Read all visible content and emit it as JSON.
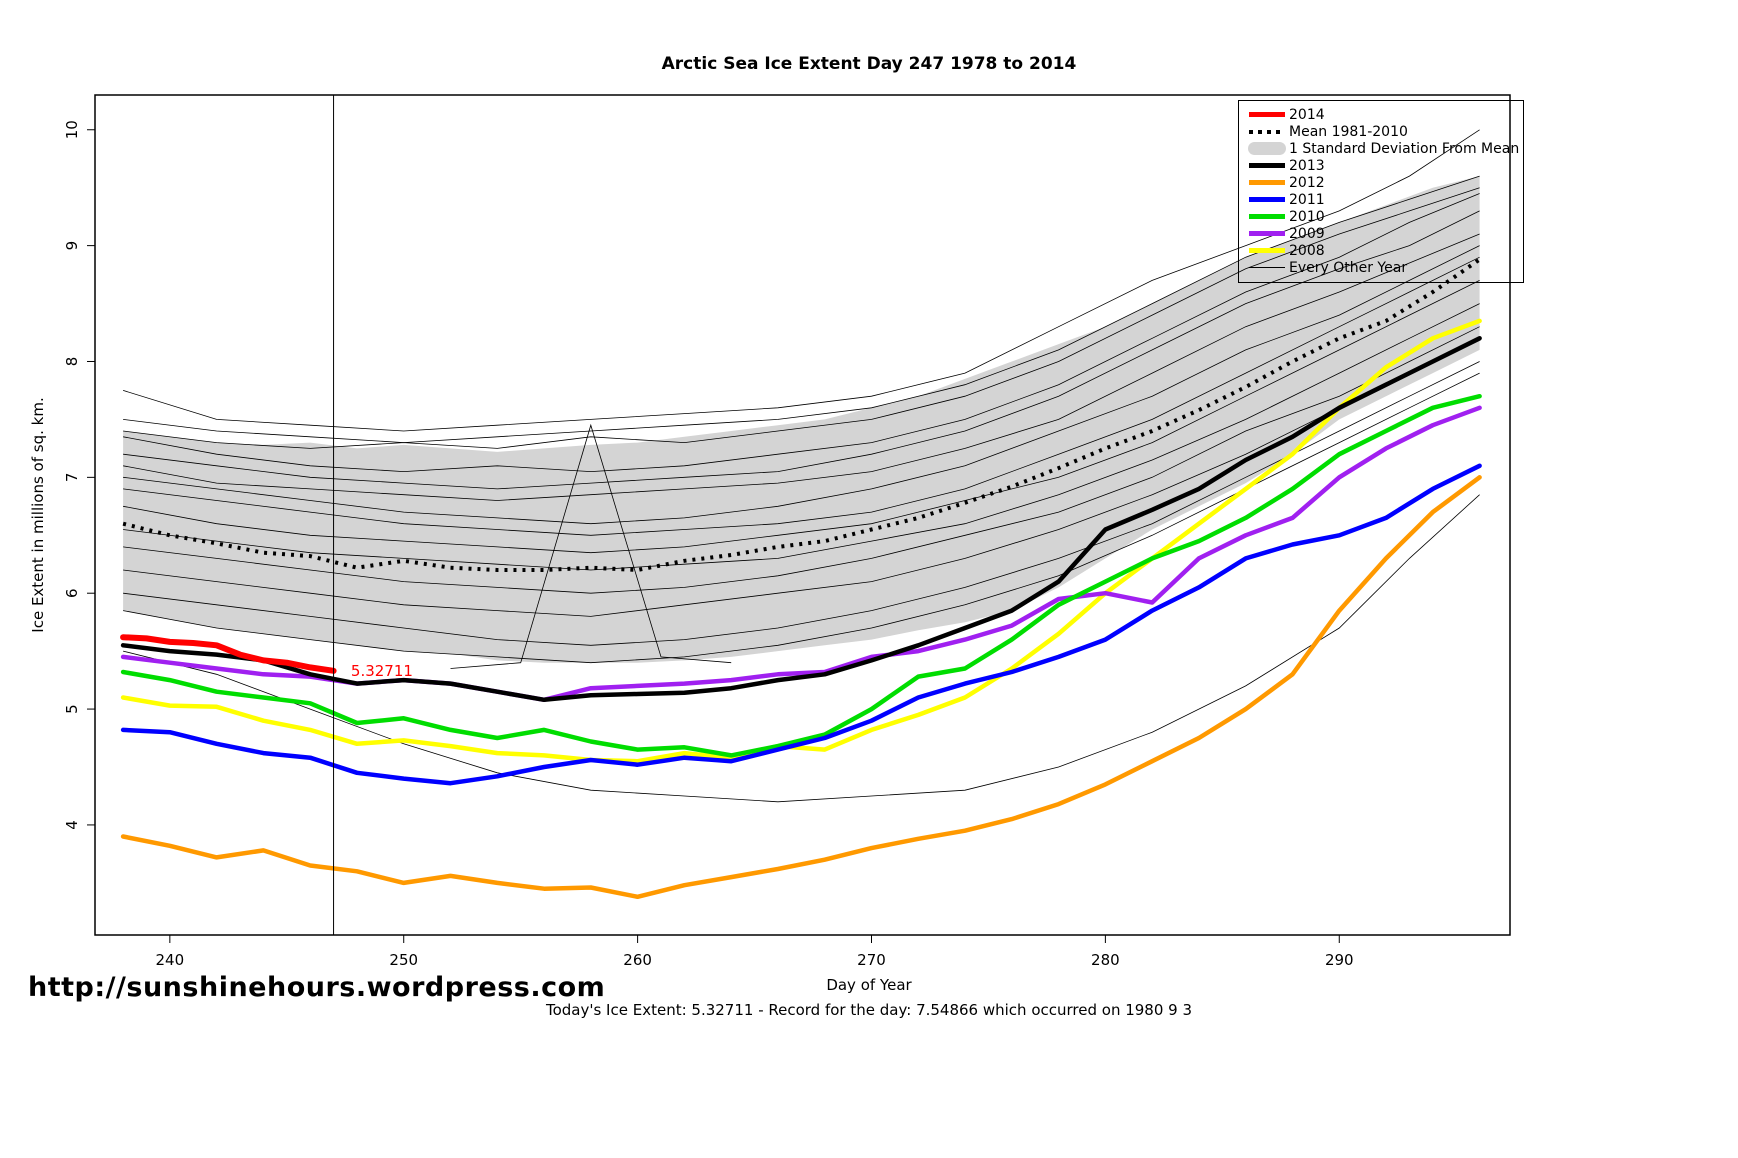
{
  "page": {
    "url_text": "http://sunshinehours.wordpress.com",
    "footer_note": "Today's Ice Extent: 5.32711  - Record for the day: 7.54866 which occurred on 1980 9 3"
  },
  "chart_data": {
    "type": "line",
    "title": "Arctic Sea Ice Extent Day 247 1978 to 2014",
    "xlabel": "Day of Year",
    "ylabel": "Ice Extent in millions of sq. km.",
    "xlim": [
      236.8,
      297.3
    ],
    "ylim": [
      3.05,
      10.3
    ],
    "xticks": [
      240,
      250,
      260,
      270,
      280,
      290
    ],
    "yticks": [
      4,
      5,
      6,
      7,
      8,
      9,
      10
    ],
    "vline_x": 247,
    "annotation": {
      "x": 247.4,
      "y": 5.33,
      "text": "5.32711",
      "color": "#ff0000"
    },
    "band": {
      "name": "1 Standard Deviation From Mean",
      "color": "#d4d4d4",
      "x": [
        238,
        240,
        242,
        244,
        246,
        248,
        250,
        252,
        254,
        256,
        258,
        260,
        262,
        264,
        266,
        268,
        270,
        272,
        274,
        276,
        278,
        280,
        282,
        284,
        286,
        288,
        290,
        292,
        294,
        296
      ],
      "upper": [
        7.4,
        7.35,
        7.3,
        7.28,
        7.3,
        7.25,
        7.28,
        7.25,
        7.22,
        7.25,
        7.28,
        7.3,
        7.35,
        7.4,
        7.45,
        7.5,
        7.6,
        7.7,
        7.85,
        8.0,
        8.15,
        8.3,
        8.5,
        8.7,
        8.9,
        9.05,
        9.2,
        9.35,
        9.5,
        9.6
      ],
      "lower": [
        5.85,
        5.78,
        5.7,
        5.65,
        5.6,
        5.55,
        5.5,
        5.48,
        5.42,
        5.4,
        5.4,
        5.4,
        5.42,
        5.45,
        5.5,
        5.55,
        5.6,
        5.68,
        5.75,
        5.85,
        6.05,
        6.3,
        6.55,
        6.75,
        6.95,
        7.2,
        7.5,
        7.7,
        7.9,
        8.1
      ]
    },
    "mean": {
      "name": "Mean 1981-2010",
      "color": "#000000",
      "x": [
        238,
        240,
        242,
        244,
        246,
        248,
        250,
        252,
        254,
        256,
        258,
        260,
        262,
        264,
        266,
        268,
        270,
        272,
        274,
        276,
        278,
        280,
        282,
        284,
        286,
        288,
        290,
        292,
        294,
        296
      ],
      "y": [
        6.6,
        6.5,
        6.43,
        6.35,
        6.32,
        6.22,
        6.28,
        6.22,
        6.2,
        6.2,
        6.22,
        6.2,
        6.28,
        6.33,
        6.4,
        6.45,
        6.55,
        6.65,
        6.78,
        6.92,
        7.08,
        7.25,
        7.4,
        7.58,
        7.78,
        8.0,
        8.2,
        8.35,
        8.6,
        8.88
      ]
    },
    "series": [
      {
        "name": "2014",
        "color": "#ff0000",
        "width": 6,
        "x": [
          238,
          239,
          240,
          241,
          242,
          243,
          244,
          245,
          246,
          247
        ],
        "y": [
          5.62,
          5.61,
          5.58,
          5.57,
          5.55,
          5.47,
          5.42,
          5.4,
          5.36,
          5.33
        ]
      },
      {
        "name": "2013",
        "color": "#000000",
        "width": 4.5,
        "x": [
          238,
          240,
          242,
          244,
          246,
          248,
          250,
          252,
          254,
          256,
          258,
          260,
          262,
          264,
          266,
          268,
          270,
          272,
          274,
          276,
          278,
          280,
          282,
          284,
          286,
          288,
          290,
          292,
          294,
          296
        ],
        "y": [
          5.55,
          5.5,
          5.47,
          5.42,
          5.3,
          5.22,
          5.25,
          5.22,
          5.15,
          5.08,
          5.12,
          5.13,
          5.14,
          5.18,
          5.25,
          5.3,
          5.42,
          5.55,
          5.7,
          5.85,
          6.1,
          6.55,
          6.72,
          6.9,
          7.15,
          7.35,
          7.6,
          7.8,
          8.0,
          8.2
        ]
      },
      {
        "name": "2012",
        "color": "#ff9900",
        "width": 4.5,
        "x": [
          238,
          240,
          242,
          244,
          246,
          248,
          250,
          252,
          254,
          256,
          258,
          260,
          262,
          264,
          266,
          268,
          270,
          272,
          274,
          276,
          278,
          280,
          282,
          284,
          286,
          288,
          290,
          292,
          294,
          296
        ],
        "y": [
          3.9,
          3.82,
          3.72,
          3.78,
          3.65,
          3.6,
          3.5,
          3.56,
          3.5,
          3.45,
          3.46,
          3.38,
          3.48,
          3.55,
          3.62,
          3.7,
          3.8,
          3.88,
          3.95,
          4.05,
          4.18,
          4.35,
          4.55,
          4.75,
          5.0,
          5.3,
          5.85,
          6.3,
          6.7,
          7.0
        ]
      },
      {
        "name": "2011",
        "color": "#0000ff",
        "width": 4.5,
        "x": [
          238,
          240,
          242,
          244,
          246,
          248,
          250,
          252,
          254,
          256,
          258,
          260,
          262,
          264,
          266,
          268,
          270,
          272,
          274,
          276,
          278,
          280,
          282,
          284,
          286,
          288,
          290,
          292,
          294,
          296
        ],
        "y": [
          4.82,
          4.8,
          4.7,
          4.62,
          4.58,
          4.45,
          4.4,
          4.36,
          4.42,
          4.5,
          4.56,
          4.52,
          4.58,
          4.55,
          4.65,
          4.75,
          4.9,
          5.1,
          5.22,
          5.32,
          5.45,
          5.6,
          5.85,
          6.05,
          6.3,
          6.42,
          6.5,
          6.65,
          6.9,
          7.1
        ]
      },
      {
        "name": "2010",
        "color": "#00dd00",
        "width": 4.5,
        "x": [
          238,
          240,
          242,
          244,
          246,
          248,
          250,
          252,
          254,
          256,
          258,
          260,
          262,
          264,
          266,
          268,
          270,
          272,
          274,
          276,
          278,
          280,
          282,
          284,
          286,
          288,
          290,
          292,
          294,
          296
        ],
        "y": [
          5.32,
          5.25,
          5.15,
          5.1,
          5.05,
          4.88,
          4.92,
          4.82,
          4.75,
          4.82,
          4.72,
          4.65,
          4.67,
          4.6,
          4.68,
          4.78,
          5.0,
          5.28,
          5.35,
          5.6,
          5.9,
          6.1,
          6.3,
          6.45,
          6.65,
          6.9,
          7.2,
          7.4,
          7.6,
          7.7
        ]
      },
      {
        "name": "2009",
        "color": "#a020f0",
        "width": 4.5,
        "x": [
          238,
          240,
          242,
          244,
          246,
          248,
          250,
          252,
          254,
          256,
          258,
          260,
          262,
          264,
          266,
          268,
          270,
          272,
          274,
          276,
          278,
          280,
          282,
          284,
          286,
          288,
          290,
          292,
          294,
          296
        ],
        "y": [
          5.45,
          5.4,
          5.35,
          5.3,
          5.28,
          5.22,
          5.25,
          5.22,
          5.15,
          5.08,
          5.18,
          5.2,
          5.22,
          5.25,
          5.3,
          5.32,
          5.45,
          5.5,
          5.6,
          5.72,
          5.95,
          6.0,
          5.92,
          6.3,
          6.5,
          6.65,
          7.0,
          7.25,
          7.45,
          7.6
        ]
      },
      {
        "name": "2008",
        "color": "#ffff00",
        "width": 4.5,
        "x": [
          238,
          240,
          242,
          244,
          246,
          248,
          250,
          252,
          254,
          256,
          258,
          260,
          262,
          264,
          266,
          268,
          270,
          272,
          274,
          276,
          278,
          280,
          282,
          284,
          286,
          288,
          290,
          292,
          294,
          296
        ],
        "y": [
          5.1,
          5.03,
          5.02,
          4.9,
          4.82,
          4.7,
          4.73,
          4.68,
          4.62,
          4.6,
          4.56,
          4.55,
          4.62,
          4.58,
          4.68,
          4.65,
          4.82,
          4.95,
          5.1,
          5.35,
          5.65,
          6.0,
          6.3,
          6.6,
          6.9,
          7.2,
          7.6,
          7.95,
          8.2,
          8.35
        ]
      }
    ],
    "other_years": {
      "name": "Every Other Year",
      "color": "#000000",
      "width": 0.8,
      "x": [
        238,
        242,
        246,
        250,
        254,
        258,
        262,
        266,
        270,
        274,
        278,
        282,
        286,
        290,
        293,
        296
      ],
      "lines": [
        {
          "y": [
            7.75,
            7.5,
            7.45,
            7.4,
            7.45,
            7.5,
            7.55,
            7.6,
            7.7,
            7.9,
            8.3,
            8.7,
            9.0,
            9.3,
            9.6,
            10.0
          ]
        },
        {
          "y": [
            7.5,
            7.4,
            7.35,
            7.3,
            7.35,
            7.4,
            7.45,
            7.5,
            7.6,
            7.8,
            8.1,
            8.5,
            8.9,
            9.2,
            9.4,
            9.6
          ]
        },
        {
          "y": [
            7.4,
            7.3,
            7.25,
            7.3,
            7.25,
            7.35,
            7.3,
            7.4,
            7.5,
            7.7,
            8.0,
            8.4,
            8.8,
            9.1,
            9.3,
            9.5
          ]
        },
        {
          "y": [
            7.35,
            7.2,
            7.1,
            7.05,
            7.1,
            7.05,
            7.1,
            7.2,
            7.3,
            7.5,
            7.8,
            8.2,
            8.6,
            8.9,
            9.2,
            9.45
          ]
        },
        {
          "y": [
            7.2,
            7.1,
            7.0,
            6.95,
            6.9,
            6.95,
            7.0,
            7.05,
            7.2,
            7.4,
            7.7,
            8.1,
            8.5,
            8.8,
            9.0,
            9.3
          ]
        },
        {
          "y": [
            7.1,
            6.95,
            6.9,
            6.85,
            6.8,
            6.85,
            6.9,
            6.95,
            7.05,
            7.25,
            7.5,
            7.9,
            8.3,
            8.6,
            8.85,
            9.1
          ]
        },
        {
          "y": [
            7.0,
            6.9,
            6.8,
            6.7,
            6.65,
            6.6,
            6.65,
            6.75,
            6.9,
            7.1,
            7.4,
            7.7,
            8.1,
            8.4,
            8.7,
            9.0
          ]
        },
        {
          "y": [
            6.9,
            6.8,
            6.7,
            6.6,
            6.55,
            6.5,
            6.55,
            6.6,
            6.7,
            6.9,
            7.2,
            7.5,
            7.9,
            8.3,
            8.6,
            8.9
          ]
        },
        {
          "y": [
            6.75,
            6.6,
            6.5,
            6.45,
            6.4,
            6.35,
            6.4,
            6.5,
            6.6,
            6.8,
            7.0,
            7.3,
            7.7,
            8.1,
            8.4,
            8.7
          ]
        },
        {
          "y": [
            6.55,
            6.45,
            6.35,
            6.3,
            6.25,
            6.2,
            6.25,
            6.3,
            6.45,
            6.6,
            6.85,
            7.15,
            7.5,
            7.9,
            8.2,
            8.5
          ]
        },
        {
          "y": [
            6.4,
            6.3,
            6.2,
            6.1,
            6.05,
            6.0,
            6.05,
            6.15,
            6.3,
            6.5,
            6.7,
            7.0,
            7.4,
            7.7,
            8.0,
            8.3
          ]
        },
        {
          "y": [
            6.2,
            6.1,
            6.0,
            5.9,
            5.85,
            5.8,
            5.9,
            6.0,
            6.1,
            6.3,
            6.55,
            6.85,
            7.2,
            7.6,
            7.9,
            8.2
          ]
        },
        {
          "y": [
            6.0,
            5.9,
            5.8,
            5.7,
            5.6,
            5.55,
            5.6,
            5.7,
            5.85,
            6.05,
            6.3,
            6.6,
            7.0,
            7.4,
            7.7,
            8.0
          ]
        },
        {
          "y": [
            5.85,
            5.7,
            5.6,
            5.5,
            5.45,
            5.4,
            5.45,
            5.55,
            5.7,
            5.9,
            6.15,
            6.5,
            6.9,
            7.3,
            7.6,
            7.9
          ]
        },
        {
          "y": [
            5.5,
            5.3,
            5.0,
            4.7,
            4.45,
            4.3,
            4.25,
            4.2,
            4.25,
            4.3,
            4.5,
            4.8,
            5.2,
            5.7,
            6.3,
            6.85
          ]
        },
        {
          "x": [
            252,
            255,
            258,
            261,
            264
          ],
          "y": [
            5.35,
            5.4,
            7.45,
            5.45,
            5.4
          ]
        }
      ]
    },
    "legend": {
      "items": [
        {
          "label": "2014",
          "swatch": "line",
          "color": "#ff0000"
        },
        {
          "label": "Mean 1981-2010",
          "swatch": "dashed",
          "color": "#000000"
        },
        {
          "label": "1 Standard Deviation From Mean",
          "swatch": "band",
          "color": "#d4d4d4"
        },
        {
          "label": "2013",
          "swatch": "line",
          "color": "#000000"
        },
        {
          "label": "2012",
          "swatch": "line",
          "color": "#ff9900"
        },
        {
          "label": "2011",
          "swatch": "line",
          "color": "#0000ff"
        },
        {
          "label": "2010",
          "swatch": "line",
          "color": "#00dd00"
        },
        {
          "label": "2009",
          "swatch": "line",
          "color": "#a020f0"
        },
        {
          "label": "2008",
          "swatch": "line",
          "color": "#ffff00"
        },
        {
          "label": "Every Other Year",
          "swatch": "thin",
          "color": "#000000"
        }
      ]
    }
  }
}
